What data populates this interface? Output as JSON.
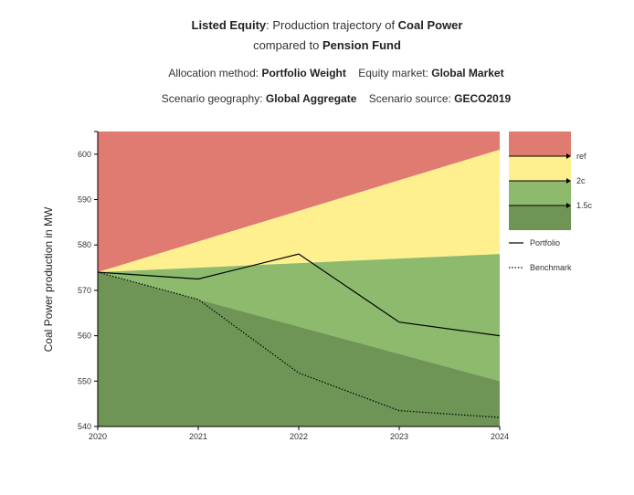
{
  "header": {
    "line1": [
      {
        "text": "Listed Equity",
        "bold": true
      },
      {
        "text": ": Production trajectory of ",
        "bold": false
      },
      {
        "text": "Coal Power",
        "bold": true
      }
    ],
    "line2": [
      {
        "text": "compared to ",
        "bold": false
      },
      {
        "text": "Pension Fund",
        "bold": true
      }
    ],
    "meta_row1": [
      {
        "text": "Allocation method: ",
        "bold": false
      },
      {
        "text": "Portfolio Weight",
        "bold": true
      },
      {
        "text": "    Equity market: ",
        "bold": false
      },
      {
        "text": "Global Market",
        "bold": true
      }
    ],
    "meta_row2": [
      {
        "text": "Scenario geography: ",
        "bold": false
      },
      {
        "text": "Global Aggregate",
        "bold": true
      },
      {
        "text": "    Scenario source: ",
        "bold": false
      },
      {
        "text": "GECO2019",
        "bold": true
      }
    ]
  },
  "colors": {
    "ref": "#e07b72",
    "2c": "#fff08f",
    "1.5c_light": "#8dba6d",
    "1.5c_dark": "#6f9556",
    "line": "#000000"
  },
  "chart_data": {
    "type": "area",
    "x": [
      2020,
      2021,
      2022,
      2023,
      2024
    ],
    "xlim": [
      2020,
      2024
    ],
    "ylim": [
      540,
      605
    ],
    "yticks": [
      540,
      550,
      560,
      570,
      580,
      590,
      600
    ],
    "ylabel": "Coal Power production in MW",
    "xlabel": "",
    "grid": false,
    "bands": [
      {
        "name": "ref",
        "upper": [
          605,
          605,
          605,
          605,
          605
        ],
        "lower": [
          574,
          580.75,
          587.5,
          594.25,
          601
        ],
        "color": "#e07b72"
      },
      {
        "name": "2c",
        "upper": [
          574,
          580.75,
          587.5,
          594.25,
          601
        ],
        "lower": [
          574,
          575,
          576,
          577,
          578
        ],
        "color": "#fff08f"
      },
      {
        "name": "1.5c",
        "upper": [
          574,
          575,
          576,
          577,
          578
        ],
        "lower": [
          574,
          568,
          562,
          556,
          550
        ],
        "color": "#8dba6d"
      },
      {
        "name": "1.5c",
        "upper": [
          574,
          568,
          562,
          556,
          550
        ],
        "lower": [
          540,
          540,
          540,
          540,
          540
        ],
        "color": "#6f9556"
      }
    ],
    "series": [
      {
        "name": "Portfolio",
        "style": "solid",
        "values": [
          574,
          572.5,
          578,
          563,
          560
        ]
      },
      {
        "name": "Benchmark",
        "style": "dotted",
        "values": [
          574,
          568,
          551.8,
          543.5,
          542
        ]
      }
    ],
    "legend": {
      "placement": "right",
      "band_labels": [
        "ref",
        "2c",
        "1.5c"
      ],
      "line_labels": [
        "Portfolio",
        "Benchmark"
      ]
    }
  }
}
